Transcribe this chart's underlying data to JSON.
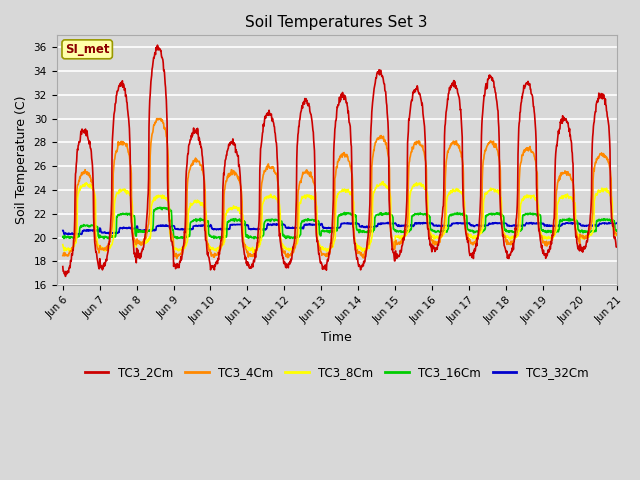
{
  "title": "Soil Temperatures Set 3",
  "xlabel": "Time",
  "ylabel": "Soil Temperature (C)",
  "ylim": [
    16,
    37
  ],
  "yticks": [
    16,
    18,
    20,
    22,
    24,
    26,
    28,
    30,
    32,
    34,
    36
  ],
  "xlim_days": [
    5.83,
    21.0
  ],
  "xtick_positions": [
    6,
    7,
    8,
    9,
    10,
    11,
    12,
    13,
    14,
    15,
    16,
    17,
    18,
    19,
    20,
    21
  ],
  "xtick_labels": [
    "Jun 6",
    "Jun 7",
    "Jun 8",
    "Jun 9",
    "Jun 10",
    "Jun 11",
    "Jun 12",
    "Jun 13",
    "Jun 14",
    "Jun 15",
    "Jun 16",
    "Jun 17",
    "Jun 18",
    "Jun 19",
    "Jun 20",
    "Jun 21"
  ],
  "series_colors": {
    "TC3_2Cm": "#cc0000",
    "TC3_4Cm": "#ff8800",
    "TC3_8Cm": "#ffff00",
    "TC3_16Cm": "#00cc00",
    "TC3_32Cm": "#0000cc"
  },
  "legend_label": "SI_met",
  "background_color": "#d8d8d8",
  "plot_bg_color": "#d8d8d8",
  "grid_color": "#ffffff"
}
